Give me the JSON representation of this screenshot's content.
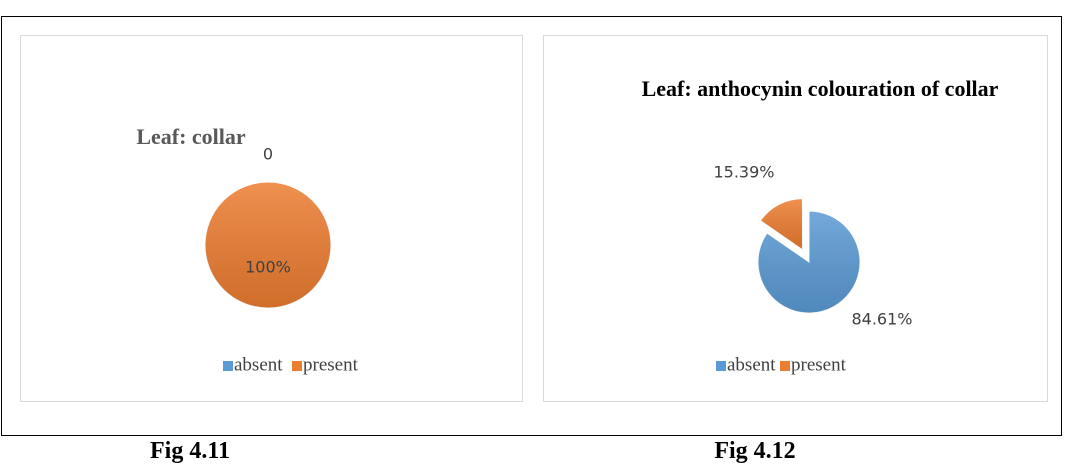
{
  "chart_data": [
    {
      "type": "pie",
      "title": "Leaf: collar",
      "caption": "Fig 4.11",
      "categories": [
        "absent",
        "present"
      ],
      "values": [
        0,
        100
      ],
      "value_labels": [
        "0",
        "100%"
      ],
      "colors": [
        "#5b9bd5",
        "#ed7d31"
      ],
      "legend": "bottom"
    },
    {
      "type": "pie",
      "title": "Leaf: anthocynin colouration of collar",
      "caption": "Fig 4.12",
      "categories": [
        "absent",
        "present"
      ],
      "values": [
        84.61,
        15.39
      ],
      "value_labels": [
        "84.61%",
        "15.39%"
      ],
      "colors": [
        "#5b9bd5",
        "#ed7d31"
      ],
      "legend": "bottom"
    }
  ]
}
